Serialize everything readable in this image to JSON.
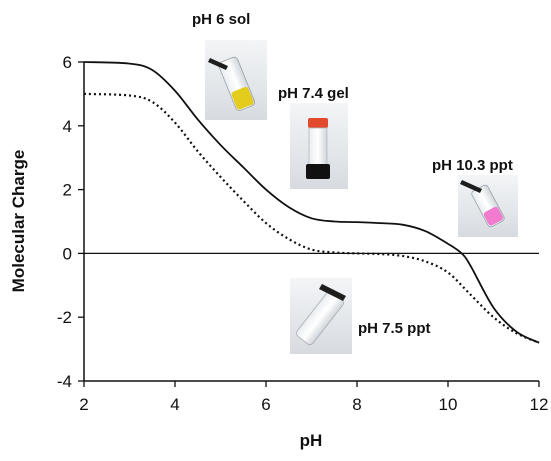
{
  "chart_data": {
    "type": "line",
    "title": "",
    "xlabel": "pH",
    "ylabel": "Molecular Charge",
    "xlim": [
      2,
      12
    ],
    "ylim": [
      -4,
      6
    ],
    "xticks": [
      "2",
      "4",
      "6",
      "8",
      "10",
      "12"
    ],
    "yticks": [
      "-4",
      "-2",
      "0",
      "2",
      "4",
      "6"
    ],
    "grid": false,
    "legend": "none",
    "reference_line": {
      "y": 0
    },
    "series": [
      {
        "style": "solid",
        "color": "#111111",
        "x": [
          2,
          3,
          3.5,
          4,
          4.5,
          5,
          5.5,
          6,
          6.5,
          7,
          7.5,
          8,
          8.5,
          9,
          9.5,
          10,
          10.3,
          10.5,
          11,
          11.5,
          12
        ],
        "y": [
          6,
          5.95,
          5.75,
          5.1,
          4.2,
          3.4,
          2.7,
          2.0,
          1.45,
          1.1,
          1.0,
          0.98,
          0.95,
          0.9,
          0.7,
          0.3,
          0.0,
          -0.4,
          -1.7,
          -2.45,
          -2.8
        ]
      },
      {
        "style": "dotted",
        "color": "#111111",
        "x": [
          2,
          3,
          3.5,
          4,
          4.5,
          5,
          5.5,
          6,
          6.5,
          7,
          7.5,
          8,
          8.5,
          9,
          9.5,
          10,
          10.5,
          11,
          11.5,
          12
        ],
        "y": [
          5.0,
          4.95,
          4.75,
          4.1,
          3.2,
          2.4,
          1.65,
          0.95,
          0.45,
          0.12,
          0.03,
          0.0,
          -0.02,
          -0.08,
          -0.25,
          -0.6,
          -1.3,
          -2.0,
          -2.5,
          -2.8
        ]
      }
    ],
    "annotations": [
      {
        "text": "pH 6 sol",
        "vial": "yellow"
      },
      {
        "text": "pH 7.4 gel",
        "vial": "gel"
      },
      {
        "text": "pH 10.3 ppt",
        "vial": "pink"
      },
      {
        "text": "pH 7.5 ppt",
        "vial": "clear"
      }
    ]
  }
}
